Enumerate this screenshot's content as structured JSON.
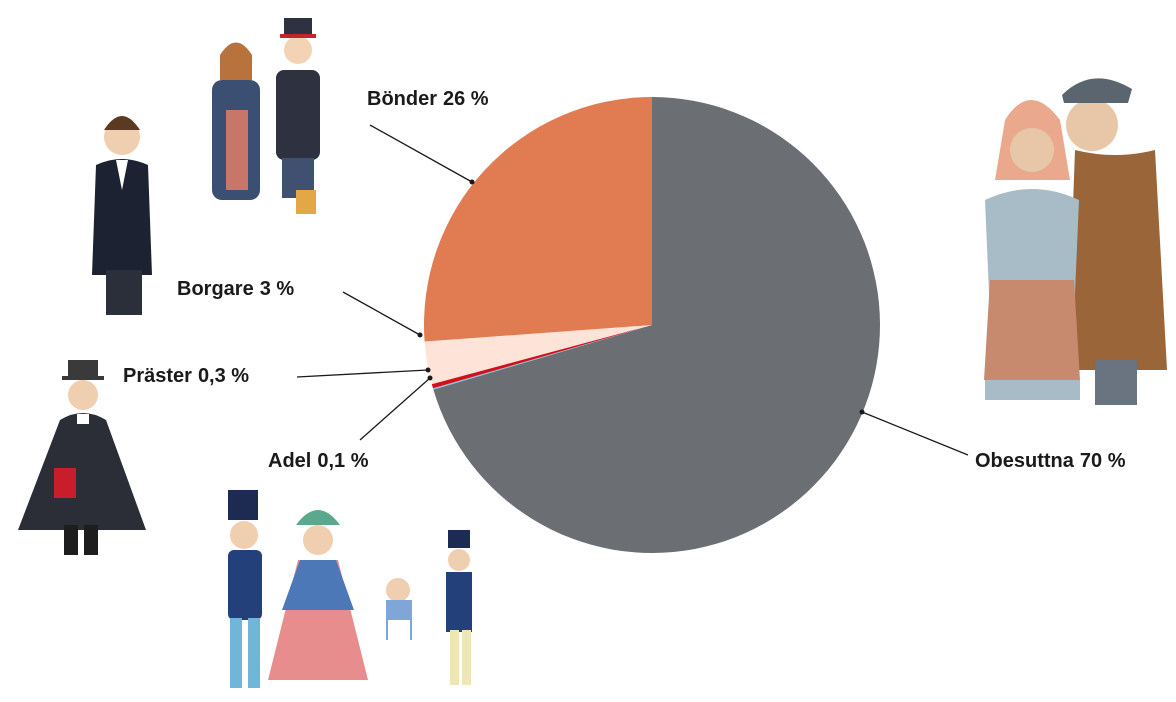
{
  "chart_data": {
    "type": "pie",
    "categories": [
      "Obesuttna",
      "Adel",
      "Präster",
      "Borgare",
      "Bönder"
    ],
    "values": [
      70,
      0.1,
      0.3,
      3,
      26
    ],
    "value_labels": [
      "70 %",
      "0,1 %",
      "0,3 %",
      "3 %",
      "26 %"
    ],
    "colors": [
      "#6b6e72",
      "#7fc3e0",
      "#d0111b",
      "#fde3d8",
      "#e07b52"
    ]
  }
}
